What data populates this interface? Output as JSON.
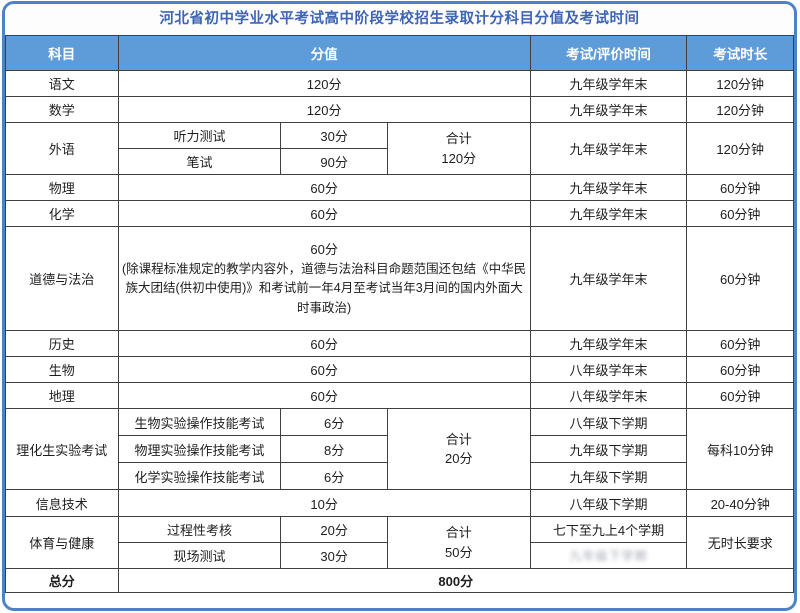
{
  "title": "河北省初中学业水平考试高中阶段学校招生录取计分科目分值及考试时间",
  "colors": {
    "frame_border": "#4d83c6",
    "title_text": "#3e64b4",
    "header_bg": "#5d9cd9",
    "header_text": "#ffffff",
    "grid_border": "#3f3f3f",
    "body_text": "#1e1e1e"
  },
  "header": {
    "subject": "科目",
    "score": "分值",
    "time": "考试/评价时间",
    "duration": "考试时长"
  },
  "rows": {
    "chinese": {
      "subject": "语文",
      "score": "120分",
      "time": "九年级学年末",
      "duration": "120分钟"
    },
    "math": {
      "subject": "数学",
      "score": "120分",
      "time": "九年级学年末",
      "duration": "120分钟"
    },
    "foreign": {
      "subject": "外语",
      "listening_label": "听力测试",
      "listening_score": "30分",
      "written_label": "笔试",
      "written_score": "90分",
      "total": "合计\n120分",
      "time": "九年级学年末",
      "duration": "120分钟"
    },
    "physics": {
      "subject": "物理",
      "score": "60分",
      "time": "九年级学年末",
      "duration": "60分钟"
    },
    "chemistry": {
      "subject": "化学",
      "score": "60分",
      "time": "九年级学年末",
      "duration": "60分钟"
    },
    "morality": {
      "subject": "道德与法治",
      "score": "60分",
      "note": "(除课程标准规定的教学内容外，道德与法治科目命题范围还包结《中华民族大团结(供初中使用)》和考试前一年4月至考试当年3月间的国内外面大时事政治)",
      "time": "九年级学年末",
      "duration": "60分钟"
    },
    "history": {
      "subject": "历史",
      "score": "60分",
      "time": "九年级学年末",
      "duration": "60分钟"
    },
    "biology": {
      "subject": "生物",
      "score": "60分",
      "time": "八年级学年末",
      "duration": "60分钟"
    },
    "geography": {
      "subject": "地理",
      "score": "60分",
      "time": "八年级学年末",
      "duration": "60分钟"
    },
    "lab": {
      "subject": "理化生实验考试",
      "bio_label": "生物实验操作技能考试",
      "bio_score": "6分",
      "bio_time": "八年级下学期",
      "phy_label": "物理实验操作技能考试",
      "phy_score": "8分",
      "phy_time": "九年级下学期",
      "chem_label": "化学实验操作技能考试",
      "chem_score": "6分",
      "chem_time": "九年级下学期",
      "total": "合计\n20分",
      "duration": "每科10分钟"
    },
    "it": {
      "subject": "信息技术",
      "score": "10分",
      "time": "八年级下学期",
      "duration": "20-40分钟"
    },
    "pe": {
      "subject": "体育与健康",
      "process_label": "过程性考核",
      "process_score": "20分",
      "onsite_label": "现场测试",
      "onsite_score": "30分",
      "total": "合计\n50分",
      "time1": "七下至九上4个学期",
      "time2_blurred": "九年级下学期",
      "duration": "无时长要求"
    },
    "total": {
      "subject": "总分",
      "score": "800分"
    }
  }
}
